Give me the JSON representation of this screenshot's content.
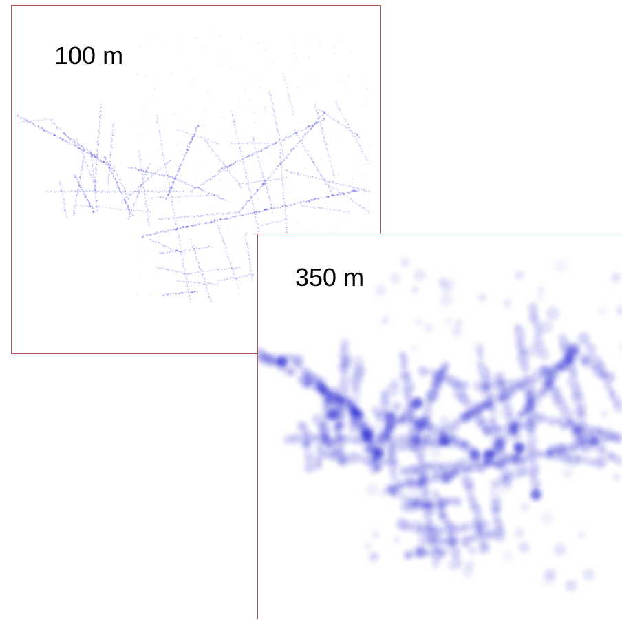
{
  "panels": [
    {
      "id": "small",
      "label": "100 m",
      "color": "#2020e0",
      "border_color": "#b5585a"
    },
    {
      "id": "large",
      "label": "350 m",
      "color": "#1a1ad0",
      "border_color": "#b5585a"
    }
  ]
}
